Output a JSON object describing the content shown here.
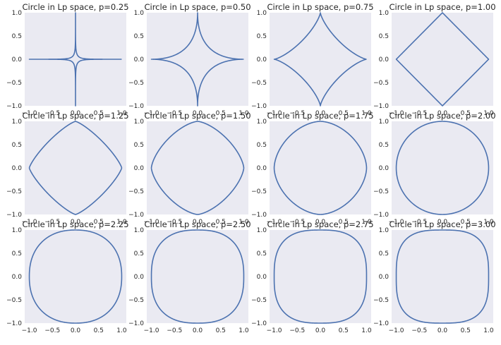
{
  "chart_data": {
    "type": "line",
    "grid": false,
    "rows": 3,
    "cols": 4,
    "line_color": "#4c72b0",
    "background_color": "#eaeaf2",
    "xlim": [
      -1.1,
      1.1
    ],
    "ylim": [
      -1.0,
      1.0
    ],
    "x_ticks": [
      {
        "value": -1.0,
        "label": "−1.0"
      },
      {
        "value": -0.5,
        "label": "−0.5"
      },
      {
        "value": 0.0,
        "label": "0.0"
      },
      {
        "value": 0.5,
        "label": "0.5"
      },
      {
        "value": 1.0,
        "label": "1.0"
      }
    ],
    "y_ticks": [
      {
        "value": -1.0,
        "label": "−1.0"
      },
      {
        "value": -0.5,
        "label": "−0.5"
      },
      {
        "value": 0.0,
        "label": "0.0"
      },
      {
        "value": 0.5,
        "label": "0.5"
      },
      {
        "value": 1.0,
        "label": "1.0"
      }
    ],
    "panels": [
      {
        "title": "Circle in Lp space, p=0.25",
        "p": 0.25
      },
      {
        "title": "Circle in Lp space, p=0.50",
        "p": 0.5
      },
      {
        "title": "Circle in Lp space, p=0.75",
        "p": 0.75
      },
      {
        "title": "Circle in Lp space, p=1.00",
        "p": 1.0
      },
      {
        "title": "Circle in Lp space, p=1.25",
        "p": 1.25
      },
      {
        "title": "Circle in Lp space, p=1.50",
        "p": 1.5
      },
      {
        "title": "Circle in Lp space, p=1.75",
        "p": 1.75
      },
      {
        "title": "Circle in Lp space, p=2.00",
        "p": 2.0
      },
      {
        "title": "Circle in Lp space, p=2.25",
        "p": 2.25
      },
      {
        "title": "Circle in Lp space, p=2.50",
        "p": 2.5
      },
      {
        "title": "Circle in Lp space, p=2.75",
        "p": 2.75
      },
      {
        "title": "Circle in Lp space, p=3.00",
        "p": 3.0
      }
    ]
  }
}
